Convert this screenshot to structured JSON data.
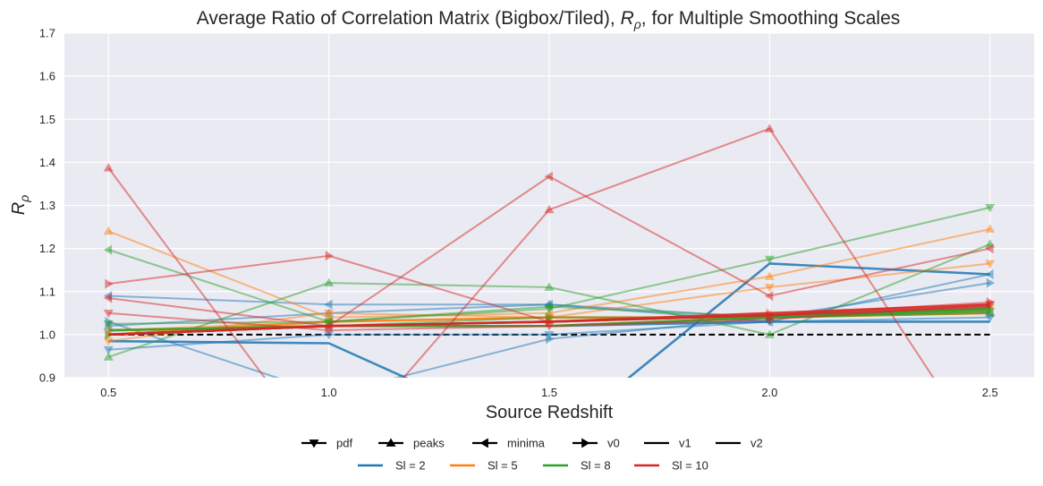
{
  "chart_data": {
    "type": "line",
    "title": "Average Ratio of Correlation Matrix (Bigbox/Tiled), ",
    "title_math": "R",
    "title_math_sub": "ρ",
    "title_suffix": ", for Multiple Smoothing Scales",
    "xlabel": "Source Redshift",
    "ylabel": "R",
    "ylabel_sub": "ρ",
    "x": [
      0.5,
      1.0,
      1.5,
      2.0,
      2.5
    ],
    "x_ticks": [
      "0.5",
      "1.0",
      "1.5",
      "2.0",
      "2.5"
    ],
    "y_ticks": [
      "0.9",
      "1.0",
      "1.1",
      "1.2",
      "1.3",
      "1.4",
      "1.5",
      "1.6",
      "1.7"
    ],
    "xlim": [
      0.4,
      2.6
    ],
    "ylim": [
      0.9,
      1.7
    ],
    "grid": true,
    "reference_line": {
      "y": 1.0,
      "color": "#000000",
      "style": "dashed"
    },
    "legend_placement": "bottom-center",
    "statistics": [
      {
        "name": "pdf",
        "marker": "triangle-down"
      },
      {
        "name": "peaks",
        "marker": "triangle-up"
      },
      {
        "name": "minima",
        "marker": "triangle-left"
      },
      {
        "name": "v0",
        "marker": "triangle-right"
      },
      {
        "name": "v1",
        "marker": "none"
      },
      {
        "name": "v2",
        "marker": "none"
      }
    ],
    "smoothing_scales": [
      {
        "name": "Sl = 2",
        "color": "#1f77b4"
      },
      {
        "name": "Sl = 5",
        "color": "#ff7f0e"
      },
      {
        "name": "Sl = 8",
        "color": "#2ca02c"
      },
      {
        "name": "Sl = 10",
        "color": "#d62728"
      }
    ],
    "series": [
      {
        "scale": "Sl = 2",
        "statistic": "pdf",
        "values": [
          0.965,
          1.0,
          1.0,
          1.03,
          1.04
        ]
      },
      {
        "scale": "Sl = 2",
        "statistic": "peaks",
        "values": [
          1.02,
          1.05,
          1.07,
          1.04,
          1.05
        ]
      },
      {
        "scale": "Sl = 2",
        "statistic": "minima",
        "values": [
          1.09,
          1.07,
          1.07,
          1.03,
          1.14
        ]
      },
      {
        "scale": "Sl = 2",
        "statistic": "v0",
        "values": [
          1.03,
          0.86,
          0.99,
          1.04,
          1.12
        ]
      },
      {
        "scale": "Sl = 2",
        "statistic": "v1",
        "values": [
          0.985,
          0.98,
          0.75,
          1.165,
          1.14
        ]
      },
      {
        "scale": "Sl = 2",
        "statistic": "v2",
        "values": [
          1.0,
          1.02,
          1.02,
          1.03,
          1.03
        ]
      },
      {
        "scale": "Sl = 5",
        "statistic": "pdf",
        "values": [
          0.985,
          1.05,
          1.04,
          1.11,
          1.165
        ]
      },
      {
        "scale": "Sl = 5",
        "statistic": "peaks",
        "values": [
          1.24,
          1.04,
          1.05,
          1.135,
          1.245
        ]
      },
      {
        "scale": "Sl = 5",
        "statistic": "minima",
        "values": [
          1.01,
          1.03,
          1.04,
          1.04,
          1.06
        ]
      },
      {
        "scale": "Sl = 5",
        "statistic": "v0",
        "values": [
          1.0,
          1.02,
          1.03,
          1.05,
          1.07
        ]
      },
      {
        "scale": "Sl = 5",
        "statistic": "v1",
        "values": [
          1.0,
          1.03,
          1.04,
          1.04,
          1.05
        ]
      },
      {
        "scale": "Sl = 5",
        "statistic": "v2",
        "values": [
          1.01,
          1.02,
          1.02,
          1.04,
          1.06
        ]
      },
      {
        "scale": "Sl = 8",
        "statistic": "pdf",
        "values": [
          1.025,
          1.03,
          1.06,
          1.175,
          1.295
        ]
      },
      {
        "scale": "Sl = 8",
        "statistic": "peaks",
        "values": [
          0.948,
          1.12,
          1.11,
          1.0,
          1.21
        ]
      },
      {
        "scale": "Sl = 8",
        "statistic": "minima",
        "values": [
          1.197,
          1.03,
          1.065,
          1.04,
          1.05
        ]
      },
      {
        "scale": "Sl = 8",
        "statistic": "v0",
        "values": [
          1.0,
          1.02,
          1.04,
          1.04,
          1.06
        ]
      },
      {
        "scale": "Sl = 8",
        "statistic": "v1",
        "values": [
          1.0,
          1.02,
          1.03,
          1.045,
          1.06
        ]
      },
      {
        "scale": "Sl = 8",
        "statistic": "v2",
        "values": [
          1.01,
          1.02,
          1.02,
          1.04,
          1.055
        ]
      },
      {
        "scale": "Sl = 10",
        "statistic": "pdf",
        "values": [
          1.05,
          1.01,
          1.02,
          1.035,
          1.07
        ]
      },
      {
        "scale": "Sl = 10",
        "statistic": "peaks",
        "values": [
          1.387,
          0.7,
          1.29,
          1.478,
          0.7
        ]
      },
      {
        "scale": "Sl = 10",
        "statistic": "minima",
        "values": [
          1.085,
          1.02,
          1.367,
          1.09,
          1.2
        ]
      },
      {
        "scale": "Sl = 10",
        "statistic": "v0",
        "values": [
          1.118,
          1.183,
          1.03,
          1.045,
          1.075
        ]
      },
      {
        "scale": "Sl = 10",
        "statistic": "v1",
        "values": [
          1.0,
          1.02,
          1.03,
          1.045,
          1.065
        ]
      },
      {
        "scale": "Sl = 10",
        "statistic": "v2",
        "values": [
          1.0,
          1.02,
          1.03,
          1.05,
          1.07
        ]
      }
    ]
  }
}
